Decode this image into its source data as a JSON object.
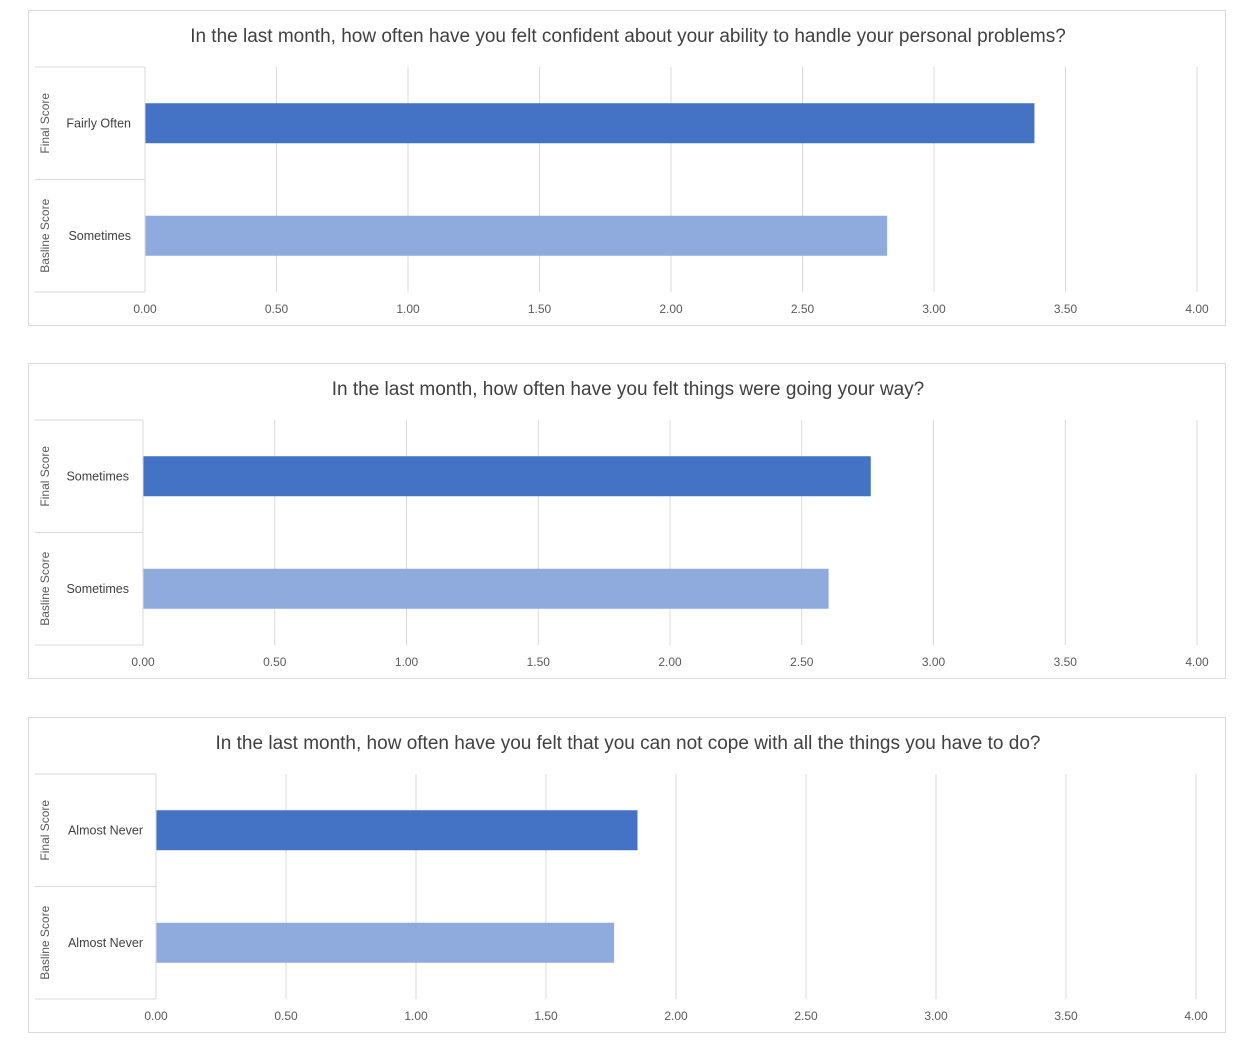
{
  "chart_data": [
    {
      "type": "bar",
      "orientation": "horizontal",
      "title": "In the last month, how often have you felt confident about your ability to handle your personal problems?",
      "xlim": [
        0,
        4
      ],
      "xticks": [
        "0.00",
        "0.50",
        "1.00",
        "1.50",
        "2.00",
        "2.50",
        "3.00",
        "3.50",
        "4.00"
      ],
      "grid": true,
      "bars": [
        {
          "group": "Final Score",
          "category": "Fairly Often",
          "value": 3.38,
          "color": "#4472c4"
        },
        {
          "group": "Basline Score",
          "category": "Sometimes",
          "value": 2.82,
          "color": "#8faadc"
        }
      ]
    },
    {
      "type": "bar",
      "orientation": "horizontal",
      "title": "In the last month, how often have you felt things were going your way?",
      "xlim": [
        0,
        4
      ],
      "xticks": [
        "0.00",
        "0.50",
        "1.00",
        "1.50",
        "2.00",
        "2.50",
        "3.00",
        "3.50",
        "4.00"
      ],
      "grid": true,
      "bars": [
        {
          "group": "Final Score",
          "category": "Sometimes",
          "value": 2.76,
          "color": "#4472c4"
        },
        {
          "group": "Basline Score",
          "category": "Sometimes",
          "value": 2.6,
          "color": "#8faadc"
        }
      ]
    },
    {
      "type": "bar",
      "orientation": "horizontal",
      "title": "In the last month, how often have you felt that you can not cope with all the things you have to do?",
      "xlim": [
        0,
        4
      ],
      "xticks": [
        "0.00",
        "0.50",
        "1.00",
        "1.50",
        "2.00",
        "2.50",
        "3.00",
        "3.50",
        "4.00"
      ],
      "grid": true,
      "bars": [
        {
          "group": "Final Score",
          "category": "Almost Never",
          "value": 1.85,
          "color": "#4472c4"
        },
        {
          "group": "Basline Score",
          "category": "Almost Never",
          "value": 1.76,
          "color": "#8faadc"
        }
      ]
    }
  ]
}
